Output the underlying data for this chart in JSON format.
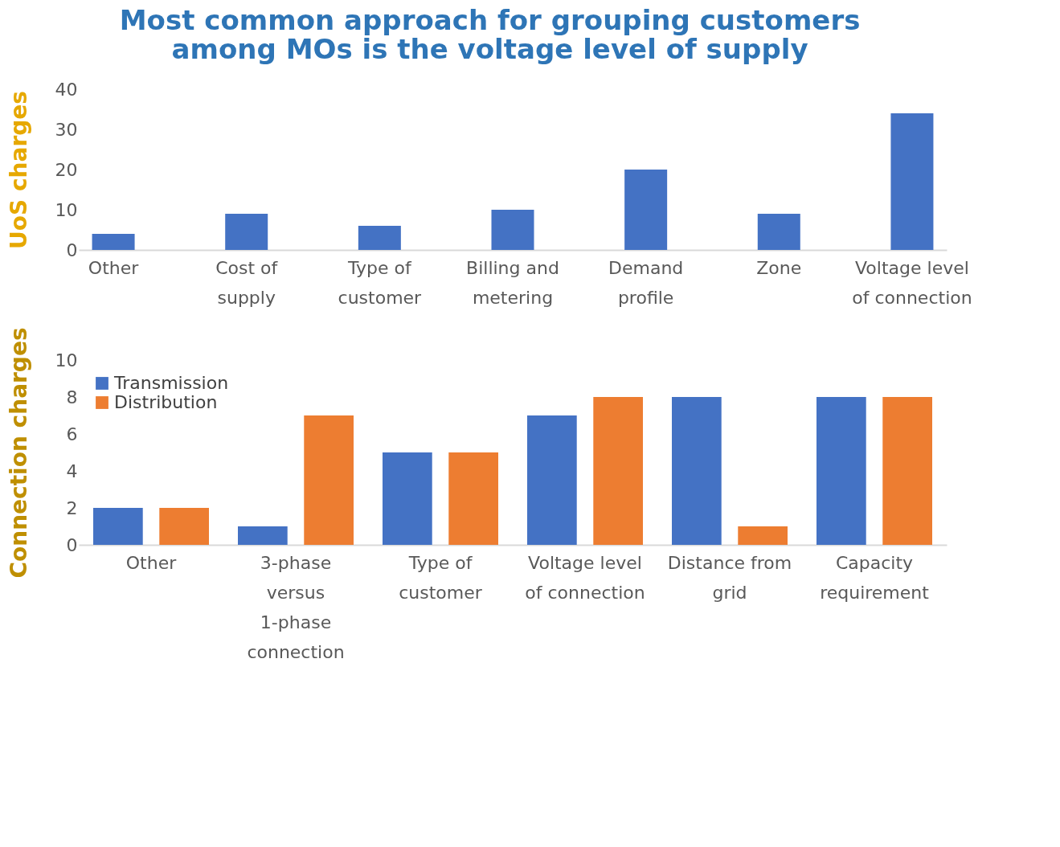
{
  "chart_data": [
    {
      "type": "bar",
      "title": "Most common approach for grouping customers among MOs is the voltage level of supply",
      "ylabel": "UoS charges",
      "categories": [
        "Other",
        "Cost of supply",
        "Type of customer",
        "Billing and metering",
        "Demand profile",
        "Zone",
        "Voltage level of connection"
      ],
      "values": [
        4,
        9,
        6,
        10,
        20,
        9,
        34
      ],
      "color": "#4472c4",
      "ylim": [
        0,
        40
      ],
      "yticks": [
        0,
        10,
        20,
        30,
        40
      ],
      "grid": false
    },
    {
      "type": "bar",
      "ylabel": "Connection charges",
      "categories": [
        "Other",
        "3-phase versus 1-phase connection",
        "Type of customer",
        "Voltage level of connection",
        "Distance from grid",
        "Capacity requirement"
      ],
      "series": [
        {
          "name": "Transmission",
          "color": "#4472c4",
          "values": [
            2,
            1,
            5,
            7,
            8,
            8
          ]
        },
        {
          "name": "Distribution",
          "color": "#ed7d31",
          "values": [
            2,
            7,
            5,
            8,
            1,
            8
          ]
        }
      ],
      "ylim": [
        0,
        10
      ],
      "yticks": [
        0,
        2,
        4,
        6,
        8,
        10
      ],
      "grid": false,
      "legend": "top left"
    }
  ]
}
